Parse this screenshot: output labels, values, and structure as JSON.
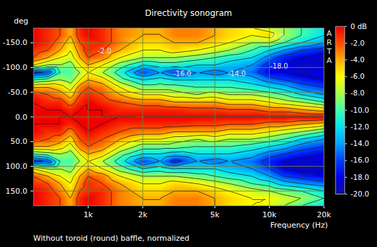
{
  "chart_data": {
    "type": "heatmap",
    "title": "Directivity sonogram",
    "caption": "Without toroid (round) baffle, normalized",
    "watermark": "ARTA",
    "x_label": "Frequency (Hz)",
    "y_label": "deg",
    "log": "x",
    "grid": true,
    "xlim": [
      500,
      20000
    ],
    "xticks": [
      {
        "value": 1000,
        "label": "1k"
      },
      {
        "value": 2000,
        "label": "2k"
      },
      {
        "value": 5000,
        "label": "5k"
      },
      {
        "value": 10000,
        "label": "10k"
      },
      {
        "value": 20000,
        "label": "20k"
      }
    ],
    "ylim": [
      -180,
      180
    ],
    "yticks": [
      {
        "value": -150,
        "label": "-150.0"
      },
      {
        "value": -100,
        "label": "-100.0"
      },
      {
        "value": -50,
        "label": "-50.0"
      },
      {
        "value": 0,
        "label": "0.0"
      },
      {
        "value": 50,
        "label": "50.0"
      },
      {
        "value": 100,
        "label": "100.0"
      },
      {
        "value": 150,
        "label": "150.0"
      }
    ],
    "x": [
      500,
      600,
      700,
      800,
      900,
      1000,
      1200,
      1500,
      2000,
      2500,
      3000,
      4000,
      5000,
      6000,
      8000,
      10000,
      12000,
      15000,
      20000
    ],
    "y": [
      -180,
      -165,
      -150,
      -135,
      -120,
      -105,
      -90,
      -75,
      -60,
      -45,
      -30,
      -15,
      0,
      15,
      30,
      45,
      60,
      75,
      90,
      105,
      120,
      135,
      150,
      165,
      180
    ],
    "cells": [
      [
        0,
        -1,
        -2,
        -4,
        -1,
        0,
        -1,
        -3,
        -4,
        -4,
        -3,
        -3,
        -4,
        -5,
        -6,
        -7,
        -8,
        -10,
        -12
      ],
      [
        0,
        -1,
        -2,
        -4,
        -1,
        0,
        -1,
        -3,
        -4,
        -4,
        -3,
        -3,
        -4,
        -5,
        -6,
        -5,
        -8,
        -10,
        -12
      ],
      [
        0,
        -1,
        -3,
        -5,
        -2,
        -1,
        -1,
        -3,
        -5,
        -5,
        -4,
        -4,
        -5,
        -6,
        -8,
        -8,
        -10,
        -12,
        -14
      ],
      [
        -1,
        -2,
        -4,
        -6,
        -3,
        -1,
        -2,
        -4,
        -6,
        -6,
        -5,
        -6,
        -7,
        -8,
        -10,
        -12,
        -14,
        -16,
        -17
      ],
      [
        -2,
        -4,
        -6,
        -7,
        -4,
        -2,
        -3,
        -6,
        -8,
        -8,
        -8,
        -9,
        -10,
        -11,
        -12,
        -15,
        -17,
        -18,
        -19
      ],
      [
        -6,
        -8,
        -8,
        -9,
        -6,
        -4,
        -6,
        -9,
        -12,
        -11,
        -11,
        -12,
        -12,
        -13,
        -14,
        -17,
        -18,
        -19,
        -19
      ],
      [
        -17,
        -16,
        -10,
        -10,
        -8,
        -6,
        -8,
        -11,
        -16,
        -14,
        -16,
        -14,
        -15,
        -14,
        -15,
        -18,
        -18,
        -19,
        -18
      ],
      [
        -10,
        -9,
        -8,
        -9,
        -6,
        -4,
        -5,
        -9,
        -12,
        -11,
        -12,
        -12,
        -12,
        -12,
        -13,
        -15,
        -16,
        -17,
        -18
      ],
      [
        -4,
        -4,
        -5,
        -7,
        -3,
        -2,
        -3,
        -6,
        -9,
        -9,
        -9,
        -10,
        -10,
        -10,
        -11,
        -12,
        -13,
        -15,
        -16
      ],
      [
        -1,
        -2,
        -3,
        -5,
        -2,
        -1,
        -2,
        -4,
        -6,
        -6,
        -7,
        -8,
        -7,
        -8,
        -8,
        -9,
        -10,
        -12,
        -14
      ],
      [
        0,
        -1,
        -1,
        -3,
        -1,
        0,
        -1,
        -2,
        -3,
        -3,
        -4,
        -4,
        -4,
        -5,
        -5,
        -6,
        -7,
        -8,
        -10
      ],
      [
        0,
        0,
        0,
        -1,
        0,
        0,
        0,
        -1,
        -1,
        -1,
        -1,
        -1.5,
        -1.5,
        -2,
        -2,
        -3,
        -3,
        -4,
        -5
      ],
      [
        0,
        0,
        0,
        0,
        0,
        0,
        0,
        0,
        0,
        0,
        0,
        0,
        0,
        0,
        0,
        0,
        0,
        0,
        0
      ],
      [
        0,
        0,
        0,
        -1,
        0,
        0,
        0,
        -1,
        -1,
        -1,
        -1,
        -1.5,
        -1.5,
        -2,
        -2,
        -3,
        -3,
        -4,
        -5
      ],
      [
        0,
        -1,
        -1,
        -3,
        -1,
        0,
        -1,
        -2,
        -3,
        -3,
        -4,
        -4,
        -4,
        -5,
        -5,
        -6,
        -7,
        -8,
        -10
      ],
      [
        -1,
        -2,
        -3,
        -5,
        -2,
        -1,
        -2,
        -4,
        -6,
        -6,
        -7,
        -8,
        -7,
        -8,
        -8,
        -9,
        -10,
        -12,
        -14
      ],
      [
        -4,
        -4,
        -5,
        -7,
        -3,
        -2,
        -3,
        -6,
        -9,
        -9,
        -9,
        -10,
        -10,
        -10,
        -11,
        -12,
        -13,
        -15,
        -16
      ],
      [
        -10,
        -9,
        -8,
        -9,
        -6,
        -4,
        -5,
        -9,
        -12,
        -12,
        -13,
        -12,
        -12,
        -12,
        -13,
        -15,
        -16,
        -17,
        -18
      ],
      [
        -17,
        -16,
        -10,
        -10,
        -8,
        -6,
        -8,
        -11,
        -16,
        -14,
        -17,
        -14,
        -15,
        -14,
        -15,
        -17,
        -18,
        -19,
        -18
      ],
      [
        -6,
        -8,
        -8,
        -9,
        -6,
        -4,
        -6,
        -9,
        -12,
        -11,
        -12,
        -12,
        -12,
        -13,
        -14,
        -16,
        -18,
        -19,
        -19
      ],
      [
        -2,
        -4,
        -6,
        -7,
        -4,
        -2,
        -3,
        -6,
        -8,
        -8,
        -8,
        -9,
        -10,
        -11,
        -12,
        -14,
        -16,
        -17,
        -18
      ],
      [
        -1,
        -2,
        -4,
        -6,
        -3,
        -1,
        -2,
        -4,
        -6,
        -6,
        -5,
        -6,
        -7,
        -8,
        -10,
        -11,
        -13,
        -14,
        -15
      ],
      [
        0,
        -1,
        -3,
        -5,
        -2,
        -1,
        -1,
        -3,
        -5,
        -5,
        -4,
        -4,
        -5,
        -6,
        -7,
        -8,
        -9,
        -10,
        -12
      ],
      [
        0,
        -1,
        -2,
        -4,
        -1,
        0,
        -1,
        -3,
        -4,
        -4,
        -3,
        -3,
        -4,
        -5,
        -6,
        -6,
        -7,
        -8,
        -10
      ],
      [
        0,
        -1,
        -2,
        -4,
        -1,
        0,
        -1,
        -3,
        -4,
        -4,
        -3,
        -3,
        -4,
        -5,
        -6,
        -7,
        -8,
        -10,
        -12
      ]
    ],
    "colorbar": {
      "range": [
        -20,
        0
      ],
      "ticks": [
        {
          "value": 0,
          "label": "0 dB"
        },
        {
          "value": -2,
          "label": "-2.0"
        },
        {
          "value": -4,
          "label": "-4.0"
        },
        {
          "value": -6,
          "label": "-6.0"
        },
        {
          "value": -8,
          "label": "-8.0"
        },
        {
          "value": -10,
          "label": "-10.0"
        },
        {
          "value": -12,
          "label": "-12.0"
        },
        {
          "value": -14,
          "label": "-14.0"
        },
        {
          "value": -16,
          "label": "-16.0"
        },
        {
          "value": -18,
          "label": "-18.0"
        },
        {
          "value": -20,
          "label": "-20.0"
        }
      ]
    },
    "annotations": [
      {
        "text": "-2.0",
        "x": 1230,
        "y": -134
      },
      {
        "text": "-16.0",
        "x": 3300,
        "y": -87
      },
      {
        "text": "-14.0",
        "x": 6600,
        "y": -87
      },
      {
        "text": "-18.0",
        "x": 11300,
        "y": -102
      },
      {
        "text": "-4.0",
        "x": 11000,
        "y": -163
      }
    ]
  }
}
